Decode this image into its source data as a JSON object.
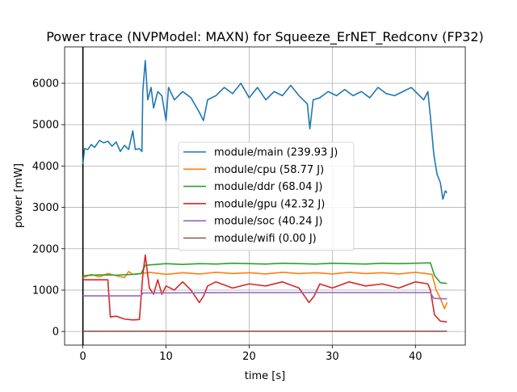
{
  "chart_data": {
    "type": "line",
    "title": "Power trace (NVPModel: MAXN) for Squeeze_ErNET_Redconv (FP32)",
    "xlabel": "time [s]",
    "ylabel": "power [mW]",
    "xlim": [
      -2.2,
      46.0
    ],
    "ylim": [
      -330,
      6880
    ],
    "xticks": [
      0,
      10,
      20,
      30,
      40
    ],
    "yticks": [
      0,
      1000,
      2000,
      3000,
      4000,
      5000,
      6000
    ],
    "grid": true,
    "legend_position": "center",
    "vline_x": 0,
    "series": [
      {
        "name": "module/main (239.93 J)",
        "color": "#1f77b4",
        "values": [
          [
            0,
            4050
          ],
          [
            0.2,
            4420
          ],
          [
            0.6,
            4400
          ],
          [
            1.0,
            4520
          ],
          [
            1.4,
            4450
          ],
          [
            2.0,
            4620
          ],
          [
            2.5,
            4560
          ],
          [
            3.0,
            4600
          ],
          [
            3.5,
            4480
          ],
          [
            4.0,
            4580
          ],
          [
            4.5,
            4350
          ],
          [
            5.0,
            4500
          ],
          [
            5.5,
            4400
          ],
          [
            6.0,
            4850
          ],
          [
            6.3,
            4400
          ],
          [
            6.8,
            4420
          ],
          [
            7.1,
            4350
          ],
          [
            7.2,
            5800
          ],
          [
            7.5,
            6550
          ],
          [
            7.8,
            5600
          ],
          [
            8.2,
            5900
          ],
          [
            8.5,
            5400
          ],
          [
            9.0,
            5800
          ],
          [
            9.5,
            5700
          ],
          [
            10.0,
            5100
          ],
          [
            10.3,
            5900
          ],
          [
            11.0,
            5600
          ],
          [
            12.0,
            5800
          ],
          [
            13.0,
            5650
          ],
          [
            14.0,
            5300
          ],
          [
            14.5,
            5100
          ],
          [
            15.0,
            5600
          ],
          [
            16.0,
            5700
          ],
          [
            17.0,
            5900
          ],
          [
            18.0,
            5750
          ],
          [
            19.0,
            6000
          ],
          [
            20.0,
            5650
          ],
          [
            21.0,
            5900
          ],
          [
            22.0,
            5600
          ],
          [
            23.0,
            5800
          ],
          [
            24.0,
            5700
          ],
          [
            25.0,
            5950
          ],
          [
            26.0,
            5700
          ],
          [
            27.0,
            5500
          ],
          [
            27.3,
            4900
          ],
          [
            27.7,
            5600
          ],
          [
            28.5,
            5650
          ],
          [
            29.5,
            5800
          ],
          [
            30.5,
            5700
          ],
          [
            31.5,
            5850
          ],
          [
            32.5,
            5700
          ],
          [
            33.5,
            5800
          ],
          [
            34.5,
            5650
          ],
          [
            35.5,
            5900
          ],
          [
            36.5,
            5750
          ],
          [
            37.5,
            5700
          ],
          [
            38.5,
            5800
          ],
          [
            39.5,
            5900
          ],
          [
            40.5,
            5700
          ],
          [
            41.0,
            5600
          ],
          [
            41.5,
            5800
          ],
          [
            41.8,
            5200
          ],
          [
            42.2,
            4300
          ],
          [
            42.6,
            3800
          ],
          [
            43.0,
            3600
          ],
          [
            43.3,
            3200
          ],
          [
            43.6,
            3400
          ],
          [
            43.8,
            3350
          ]
        ]
      },
      {
        "name": "module/cpu (58.77 J)",
        "color": "#ff7f0e",
        "values": [
          [
            0,
            1300
          ],
          [
            1.0,
            1380
          ],
          [
            2.0,
            1320
          ],
          [
            3.0,
            1400
          ],
          [
            4.0,
            1350
          ],
          [
            5.0,
            1300
          ],
          [
            5.5,
            1450
          ],
          [
            6.0,
            1380
          ],
          [
            7.0,
            1400
          ],
          [
            8.0,
            1430
          ],
          [
            10.0,
            1380
          ],
          [
            12.0,
            1420
          ],
          [
            14.0,
            1390
          ],
          [
            16.0,
            1430
          ],
          [
            18.0,
            1400
          ],
          [
            20.0,
            1420
          ],
          [
            22.0,
            1390
          ],
          [
            24.0,
            1430
          ],
          [
            26.0,
            1400
          ],
          [
            28.0,
            1420
          ],
          [
            30.0,
            1390
          ],
          [
            32.0,
            1430
          ],
          [
            34.0,
            1400
          ],
          [
            36.0,
            1420
          ],
          [
            38.0,
            1390
          ],
          [
            40.0,
            1430
          ],
          [
            42.0,
            1380
          ],
          [
            42.5,
            1000
          ],
          [
            43.0,
            800
          ],
          [
            43.5,
            550
          ],
          [
            43.8,
            700
          ]
        ]
      },
      {
        "name": "module/ddr (68.04 J)",
        "color": "#2ca02c",
        "values": [
          [
            0,
            1350
          ],
          [
            2.0,
            1370
          ],
          [
            4.0,
            1360
          ],
          [
            6.0,
            1380
          ],
          [
            7.0,
            1400
          ],
          [
            7.5,
            1600
          ],
          [
            10.0,
            1640
          ],
          [
            12.0,
            1620
          ],
          [
            14.0,
            1640
          ],
          [
            16.0,
            1630
          ],
          [
            18.0,
            1650
          ],
          [
            20.0,
            1640
          ],
          [
            22.0,
            1630
          ],
          [
            24.0,
            1650
          ],
          [
            26.0,
            1640
          ],
          [
            28.0,
            1630
          ],
          [
            30.0,
            1650
          ],
          [
            32.0,
            1640
          ],
          [
            34.0,
            1630
          ],
          [
            36.0,
            1650
          ],
          [
            38.0,
            1640
          ],
          [
            40.0,
            1650
          ],
          [
            41.8,
            1660
          ],
          [
            42.3,
            1350
          ],
          [
            43.0,
            1180
          ],
          [
            43.8,
            1160
          ]
        ]
      },
      {
        "name": "module/gpu (42.32 J)",
        "color": "#d62728",
        "values": [
          [
            0,
            1250
          ],
          [
            1.0,
            1250
          ],
          [
            2.0,
            1250
          ],
          [
            3.0,
            1250
          ],
          [
            3.3,
            350
          ],
          [
            4.0,
            370
          ],
          [
            5.0,
            300
          ],
          [
            6.0,
            280
          ],
          [
            6.8,
            290
          ],
          [
            7.2,
            1350
          ],
          [
            7.5,
            1850
          ],
          [
            8.0,
            1050
          ],
          [
            8.5,
            900
          ],
          [
            9.0,
            1250
          ],
          [
            9.5,
            900
          ],
          [
            10.0,
            1100
          ],
          [
            11.0,
            1000
          ],
          [
            12.0,
            1200
          ],
          [
            13.0,
            1000
          ],
          [
            14.0,
            700
          ],
          [
            14.5,
            850
          ],
          [
            15.0,
            1100
          ],
          [
            16.0,
            1200
          ],
          [
            18.0,
            1050
          ],
          [
            20.0,
            1150
          ],
          [
            22.0,
            1100
          ],
          [
            24.0,
            1200
          ],
          [
            26.0,
            1050
          ],
          [
            27.2,
            700
          ],
          [
            27.8,
            850
          ],
          [
            28.5,
            1150
          ],
          [
            30.0,
            1050
          ],
          [
            32.0,
            1200
          ],
          [
            34.0,
            1100
          ],
          [
            36.0,
            1150
          ],
          [
            38.0,
            1050
          ],
          [
            40.0,
            1200
          ],
          [
            41.5,
            1150
          ],
          [
            41.8,
            1000
          ],
          [
            42.3,
            400
          ],
          [
            43.0,
            250
          ],
          [
            43.8,
            230
          ]
        ]
      },
      {
        "name": "module/soc (40.24 J)",
        "color": "#9467bd",
        "values": [
          [
            0,
            860
          ],
          [
            7.0,
            860
          ],
          [
            7.2,
            930
          ],
          [
            20.0,
            940
          ],
          [
            41.8,
            940
          ],
          [
            42.2,
            800
          ],
          [
            43.8,
            790
          ]
        ]
      },
      {
        "name": "module/wifi (0.00 J)",
        "color": "#8c564b",
        "values": [
          [
            0,
            5
          ],
          [
            43.8,
            5
          ]
        ]
      }
    ]
  }
}
